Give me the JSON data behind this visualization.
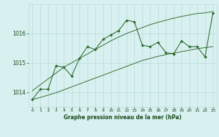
{
  "title": "Graphe pression niveau de la mer (hPa)",
  "bg_color": "#d8f0f0",
  "grid_color": "#b8d8d8",
  "line_color": "#2d6a2d",
  "text_color": "#1a4a1a",
  "xlim": [
    -0.5,
    23.5
  ],
  "ylim": [
    1013.5,
    1017.0
  ],
  "xticks": [
    0,
    1,
    2,
    3,
    4,
    5,
    6,
    7,
    8,
    9,
    10,
    11,
    12,
    13,
    14,
    15,
    16,
    17,
    18,
    19,
    20,
    21,
    22,
    23
  ],
  "yticks": [
    1014,
    1015,
    1016
  ],
  "main_line": [
    [
      0,
      1013.75
    ],
    [
      1,
      1014.1
    ],
    [
      2,
      1014.1
    ],
    [
      3,
      1014.9
    ],
    [
      4,
      1014.85
    ],
    [
      5,
      1014.55
    ],
    [
      6,
      1015.15
    ],
    [
      7,
      1015.55
    ],
    [
      8,
      1015.45
    ],
    [
      9,
      1015.8
    ],
    [
      10,
      1015.95
    ],
    [
      11,
      1016.1
    ],
    [
      12,
      1016.45
    ],
    [
      13,
      1016.4
    ],
    [
      14,
      1015.6
    ],
    [
      15,
      1015.55
    ],
    [
      16,
      1015.7
    ],
    [
      17,
      1015.35
    ],
    [
      18,
      1015.3
    ],
    [
      19,
      1015.75
    ],
    [
      20,
      1015.55
    ],
    [
      21,
      1015.55
    ],
    [
      22,
      1015.2
    ],
    [
      23,
      1016.7
    ]
  ],
  "upper_line": [
    [
      0,
      1014.05
    ],
    [
      1,
      1014.25
    ],
    [
      2,
      1014.45
    ],
    [
      3,
      1014.65
    ],
    [
      4,
      1014.85
    ],
    [
      5,
      1015.0
    ],
    [
      6,
      1015.15
    ],
    [
      7,
      1015.3
    ],
    [
      8,
      1015.45
    ],
    [
      9,
      1015.6
    ],
    [
      10,
      1015.75
    ],
    [
      11,
      1015.88
    ],
    [
      12,
      1016.0
    ],
    [
      13,
      1016.1
    ],
    [
      14,
      1016.2
    ],
    [
      15,
      1016.3
    ],
    [
      16,
      1016.38
    ],
    [
      17,
      1016.45
    ],
    [
      18,
      1016.52
    ],
    [
      19,
      1016.58
    ],
    [
      20,
      1016.63
    ],
    [
      21,
      1016.68
    ],
    [
      22,
      1016.7
    ],
    [
      23,
      1016.75
    ]
  ],
  "lower_line": [
    [
      0,
      1013.75
    ],
    [
      1,
      1013.82
    ],
    [
      2,
      1013.9
    ],
    [
      3,
      1013.98
    ],
    [
      4,
      1014.08
    ],
    [
      5,
      1014.18
    ],
    [
      6,
      1014.28
    ],
    [
      7,
      1014.38
    ],
    [
      8,
      1014.48
    ],
    [
      9,
      1014.58
    ],
    [
      10,
      1014.68
    ],
    [
      11,
      1014.78
    ],
    [
      12,
      1014.88
    ],
    [
      13,
      1014.98
    ],
    [
      14,
      1015.08
    ],
    [
      15,
      1015.15
    ],
    [
      16,
      1015.22
    ],
    [
      17,
      1015.28
    ],
    [
      18,
      1015.33
    ],
    [
      19,
      1015.38
    ],
    [
      20,
      1015.43
    ],
    [
      21,
      1015.48
    ],
    [
      22,
      1015.52
    ],
    [
      23,
      1015.55
    ]
  ]
}
